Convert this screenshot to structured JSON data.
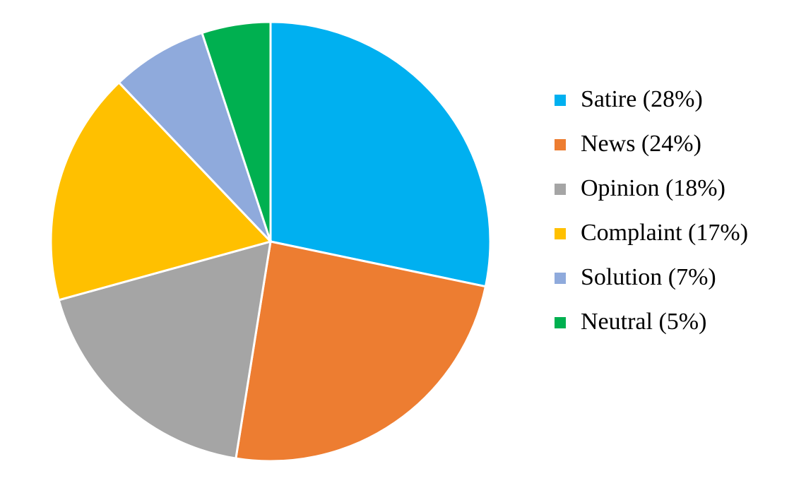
{
  "chart_data": {
    "type": "pie",
    "categories": [
      "Satire (28%)",
      "News (24%)",
      "Opinion (18%)",
      "Complaint (17%)",
      "Solution (7%)",
      "Neutral (5%)"
    ],
    "values": [
      28,
      24,
      18,
      17,
      7,
      5
    ],
    "colors": [
      "#00b0f0",
      "#ed7d31",
      "#a5a5a5",
      "#ffc000",
      "#8faadc",
      "#00b050"
    ],
    "legend": "right"
  }
}
